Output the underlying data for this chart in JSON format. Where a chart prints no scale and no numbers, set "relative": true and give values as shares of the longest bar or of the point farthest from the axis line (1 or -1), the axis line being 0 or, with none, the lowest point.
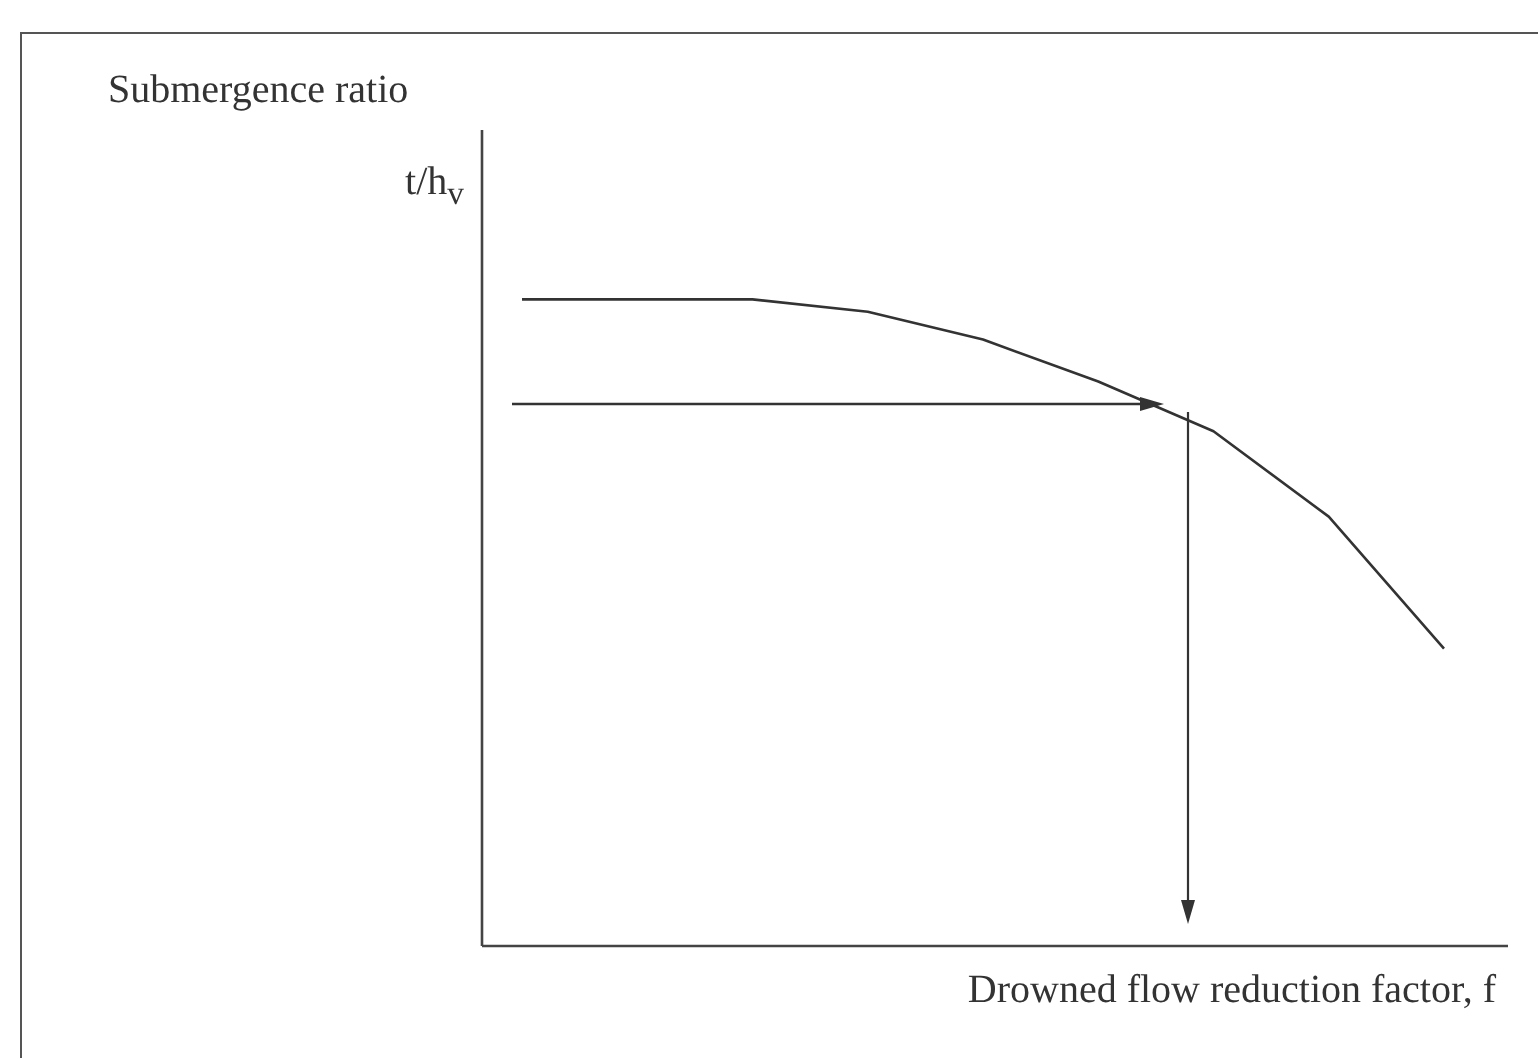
{
  "chart_data": {
    "type": "line",
    "relative": true,
    "ylabel": "Submergence ratio\nt/h$_{v}$",
    "xlabel": "Drowned flow reduction factor, f",
    "categories": [
      null,
      null,
      null,
      null,
      null,
      null,
      null,
      null,
      null
    ],
    "series": [
      {
        "color": "#333333",
        "values": [
          1,
          1,
          1,
          0.981,
          0.938,
          0.873,
          0.796,
          0.664,
          0.46
        ]
      }
    ],
    "marker": "none",
    "grid": false
  }
}
